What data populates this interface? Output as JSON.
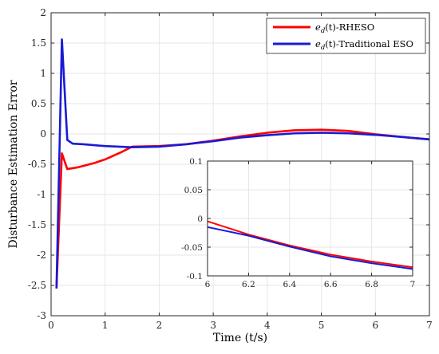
{
  "chart_data": [
    {
      "type": "line",
      "xlabel": "Time (t/s)",
      "ylabel": "Disturbance Estimation Error",
      "xlim": [
        0,
        7
      ],
      "ylim": [
        -3,
        2
      ],
      "xticks": [
        "0",
        "1",
        "2",
        "3",
        "4",
        "5",
        "6",
        "7"
      ],
      "yticks": [
        "-3",
        "-2.5",
        "-2",
        "-1.5",
        "-1",
        "-0.5",
        "0",
        "0.5",
        "1",
        "1.5",
        "2"
      ],
      "grid": true,
      "legend_position": "top-right",
      "series": [
        {
          "name": "e_d(t)-RHESO",
          "color": "#ff0000",
          "points": [
            [
              0.1,
              -2.55
            ],
            [
              0.2,
              -0.32
            ],
            [
              0.3,
              -0.58
            ],
            [
              0.5,
              -0.55
            ],
            [
              0.8,
              -0.48
            ],
            [
              1.0,
              -0.42
            ],
            [
              1.3,
              -0.3
            ],
            [
              1.5,
              -0.21
            ],
            [
              2.0,
              -0.2
            ],
            [
              2.5,
              -0.17
            ],
            [
              3.0,
              -0.11
            ],
            [
              3.5,
              -0.04
            ],
            [
              4.0,
              0.02
            ],
            [
              4.5,
              0.06
            ],
            [
              5.0,
              0.07
            ],
            [
              5.5,
              0.05
            ],
            [
              6.0,
              -0.005
            ],
            [
              6.5,
              -0.05
            ],
            [
              7.0,
              -0.09
            ]
          ]
        },
        {
          "name": "e_d(t)-Traditional ESO",
          "color": "#1a1ad6",
          "points": [
            [
              0.1,
              -2.55
            ],
            [
              0.2,
              1.56
            ],
            [
              0.3,
              -0.1
            ],
            [
              0.4,
              -0.16
            ],
            [
              0.6,
              -0.17
            ],
            [
              1.0,
              -0.2
            ],
            [
              1.5,
              -0.22
            ],
            [
              2.0,
              -0.21
            ],
            [
              2.5,
              -0.17
            ],
            [
              3.0,
              -0.12
            ],
            [
              3.5,
              -0.06
            ],
            [
              4.0,
              -0.02
            ],
            [
              4.5,
              0.01
            ],
            [
              5.0,
              0.02
            ],
            [
              5.5,
              0.01
            ],
            [
              6.0,
              -0.015
            ],
            [
              6.5,
              -0.05
            ],
            [
              7.0,
              -0.09
            ]
          ]
        }
      ]
    },
    {
      "type": "line",
      "title": "",
      "xlim": [
        6,
        7
      ],
      "ylim": [
        -0.1,
        0.1
      ],
      "xticks": [
        "6",
        "6.2",
        "6.4",
        "6.6",
        "6.8",
        "7"
      ],
      "yticks": [
        "-0.1",
        "-0.05",
        "0",
        "0.05",
        "0.1"
      ],
      "grid": true,
      "series": [
        {
          "name": "e_d(t)-RHESO",
          "color": "#ff0000",
          "points": [
            [
              6.0,
              -0.005
            ],
            [
              6.2,
              -0.028
            ],
            [
              6.4,
              -0.047
            ],
            [
              6.6,
              -0.063
            ],
            [
              6.8,
              -0.075
            ],
            [
              7.0,
              -0.085
            ]
          ]
        },
        {
          "name": "e_d(t)-Traditional ESO",
          "color": "#1a1ad6",
          "points": [
            [
              6.0,
              -0.015
            ],
            [
              6.2,
              -0.03
            ],
            [
              6.4,
              -0.049
            ],
            [
              6.6,
              -0.066
            ],
            [
              6.8,
              -0.078
            ],
            [
              7.0,
              -0.088
            ]
          ]
        }
      ]
    }
  ],
  "legend": {
    "items": [
      {
        "symbol": "e",
        "sub": "d",
        "arg": "(t)",
        "suffix": "-RHESO"
      },
      {
        "symbol": "e",
        "sub": "d",
        "arg": "(t)",
        "suffix": "-Traditional ESO"
      }
    ]
  }
}
